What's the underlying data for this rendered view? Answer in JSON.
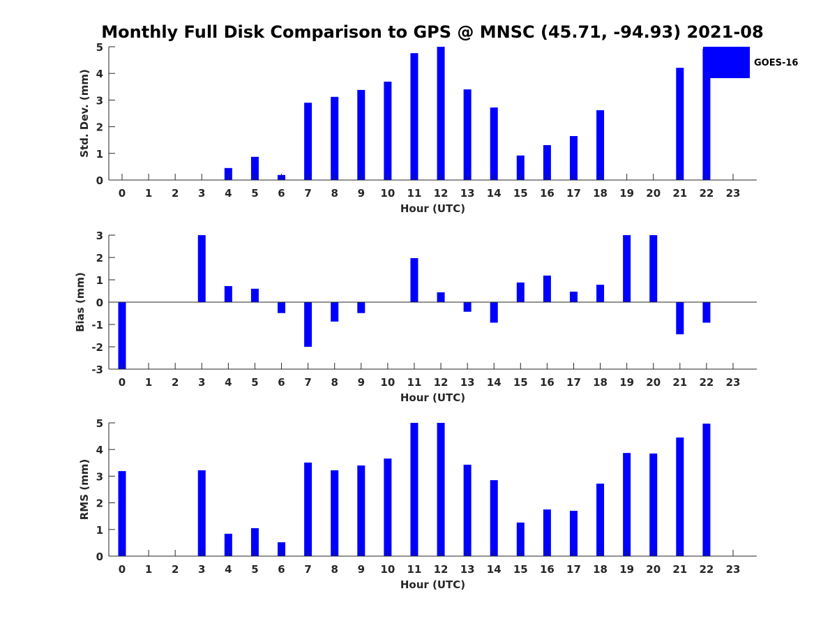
{
  "chart_data": {
    "type": "bar",
    "title": "Monthly Full Disk Comparison to GPS @ MNSC (45.71, -94.93) 2021-08",
    "legend": {
      "entries": [
        "GOES-16"
      ],
      "placement": "top-right",
      "color": "#0000ff"
    },
    "bar_color": "#0000ff",
    "categories": [
      "0",
      "1",
      "2",
      "3",
      "4",
      "5",
      "6",
      "7",
      "8",
      "9",
      "10",
      "11",
      "12",
      "13",
      "14",
      "15",
      "16",
      "17",
      "18",
      "19",
      "20",
      "21",
      "22",
      "23"
    ],
    "panels": [
      {
        "id": "std",
        "ylabel": "Std. Dev. (mm)",
        "xlabel": "Hour (UTC)",
        "ylim": [
          0,
          5
        ],
        "yticks": [
          "0",
          "1",
          "2",
          "3",
          "4",
          "5"
        ],
        "series": [
          {
            "name": "GOES-16",
            "values": [
              null,
              null,
              null,
              null,
              0.45,
              0.87,
              0.19,
              2.9,
              3.12,
              3.38,
              3.69,
              4.76,
              5.0,
              3.4,
              2.72,
              0.92,
              1.31,
              1.65,
              2.62,
              null,
              null,
              4.21,
              4.92,
              null
            ]
          }
        ]
      },
      {
        "id": "bias",
        "ylabel": "Bias (mm)",
        "xlabel": "Hour (UTC)",
        "ylim": [
          -3,
          3
        ],
        "yticks": [
          "-3",
          "-2",
          "-1",
          "0",
          "1",
          "2",
          "3"
        ],
        "series": [
          {
            "name": "GOES-16",
            "values": [
              -3.0,
              null,
              null,
              3.0,
              0.72,
              0.6,
              -0.49,
              -2.0,
              -0.87,
              -0.49,
              0.0,
              1.97,
              0.44,
              -0.43,
              -0.92,
              0.88,
              1.19,
              0.47,
              0.78,
              3.0,
              3.0,
              -1.44,
              -0.92,
              null
            ]
          }
        ]
      },
      {
        "id": "rms",
        "ylabel": "RMS (mm)",
        "xlabel": "Hour (UTC)",
        "ylim": [
          0,
          5
        ],
        "yticks": [
          "0",
          "1",
          "2",
          "3",
          "4",
          "5"
        ],
        "series": [
          {
            "name": "GOES-16",
            "values": [
              3.19,
              null,
              null,
              3.22,
              0.84,
              1.05,
              0.52,
              3.51,
              3.22,
              3.4,
              3.66,
              5.0,
              5.0,
              3.43,
              2.85,
              1.26,
              1.75,
              1.7,
              2.72,
              3.87,
              3.85,
              4.45,
              4.97,
              null
            ]
          }
        ]
      }
    ]
  }
}
